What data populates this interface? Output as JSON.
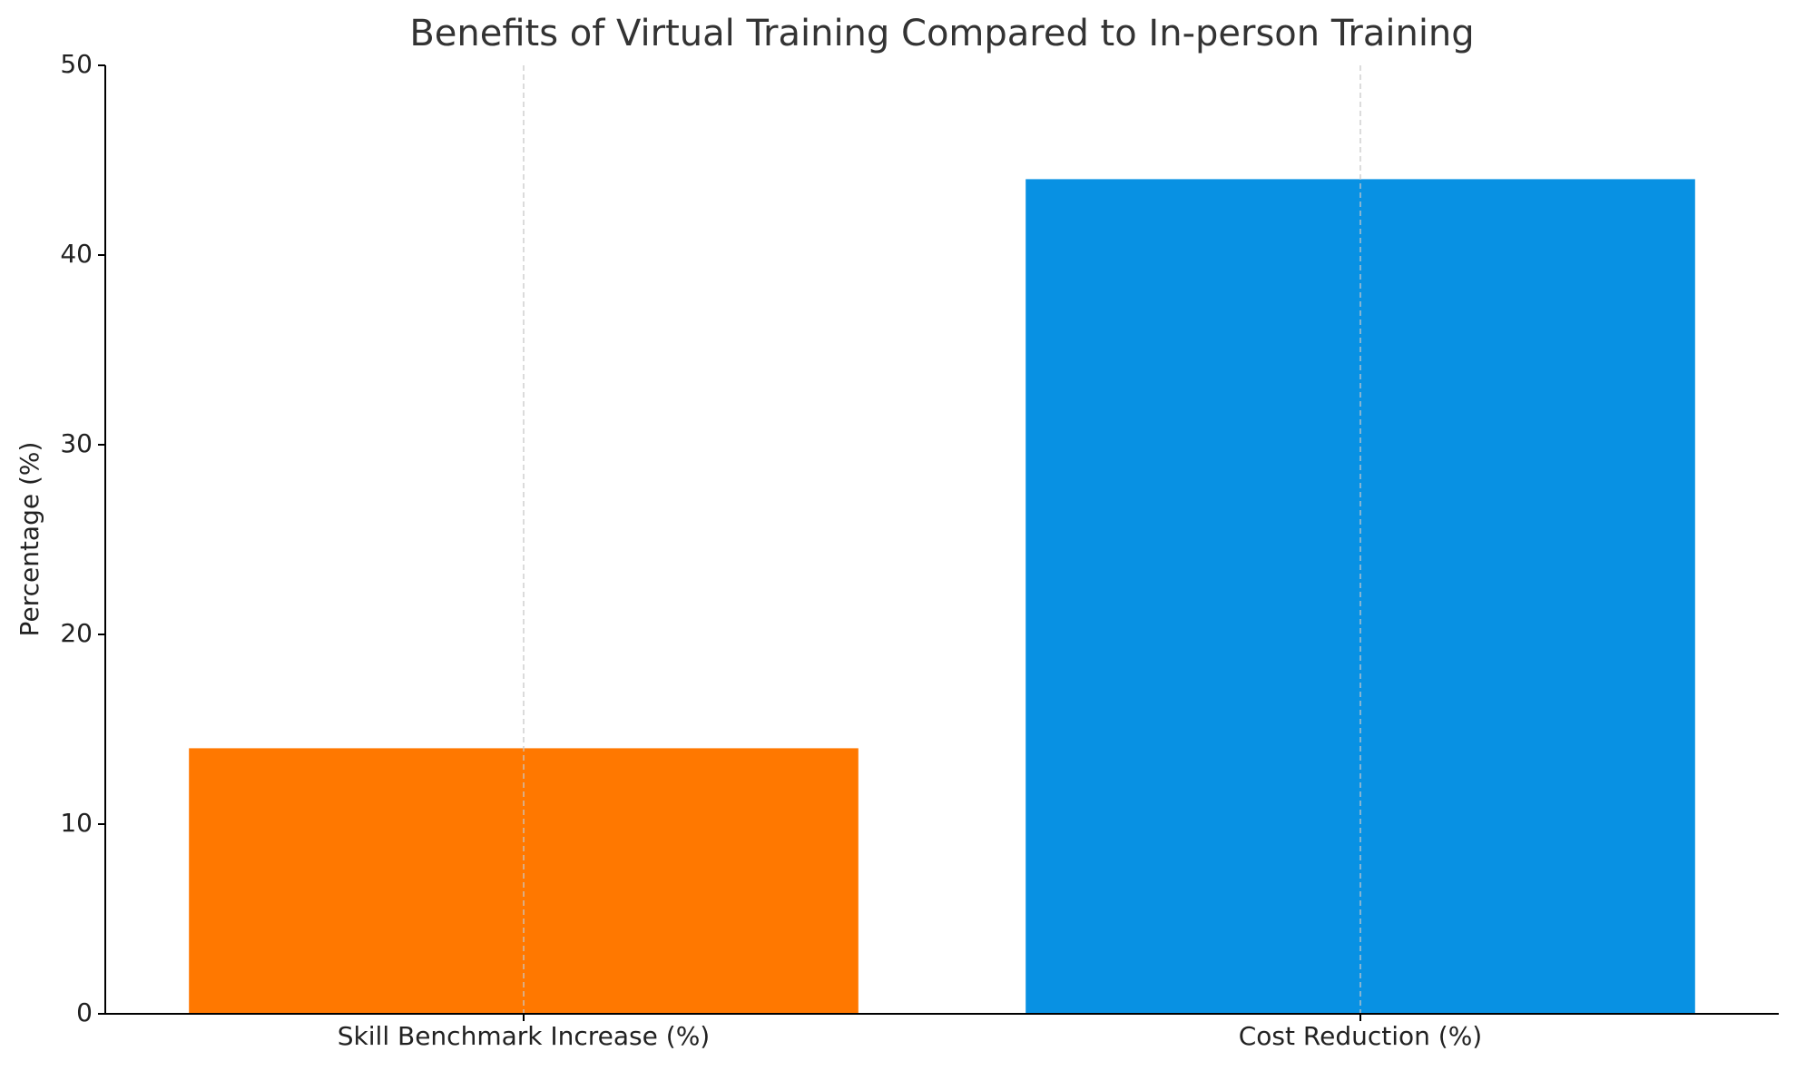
{
  "chart_data": {
    "type": "bar",
    "title": "Benefits of Virtual Training Compared to In-person Training",
    "y_label": "Percentage (%)",
    "categories": [
      "Skill Benchmark Increase (%)",
      "Cost Reduction (%)"
    ],
    "values": [
      14,
      44
    ],
    "colors": [
      "#ff7800",
      "#0891e3"
    ],
    "ylim": [
      0,
      50
    ],
    "yticks": [
      0,
      10,
      20,
      30,
      40,
      50
    ],
    "grid": "x"
  }
}
